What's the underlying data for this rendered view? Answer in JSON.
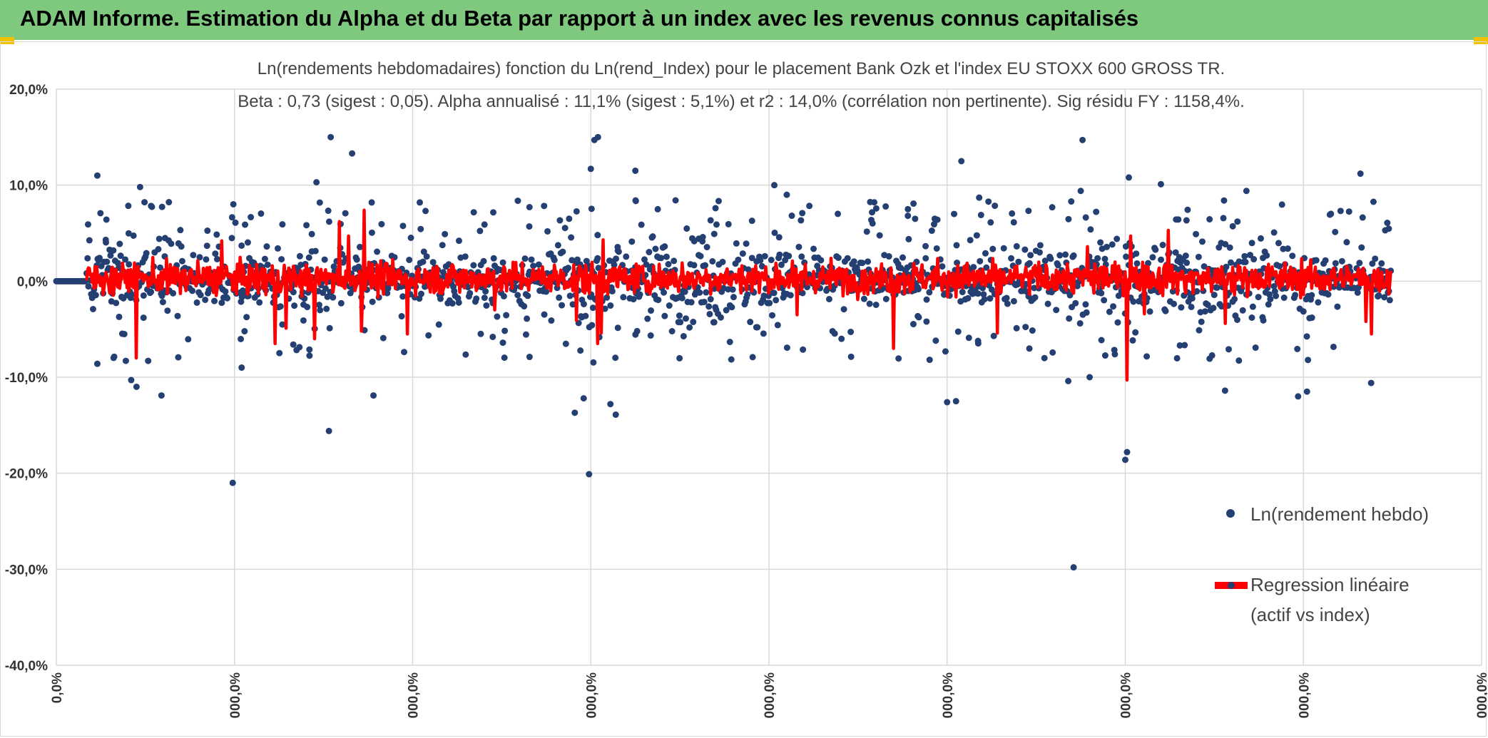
{
  "header": {
    "title": "ADAM Informe. Estimation du Alpha et du Beta par rapport à un index avec les revenus connus capitalisés",
    "accent_color": "#7fc97f",
    "corner_color": "#f2c200"
  },
  "chart_data": {
    "type": "scatter",
    "title": "Ln(rendements hebdomadaires) fonction du Ln(rend_Index) pour le placement Bank Ozk et l'index EU STOXX 600 GROSS TR.",
    "subtitle": "Beta : 0,73 (sigest : 0,05). Alpha annualisé : 11,1% (sigest : 5,1%) et r2 : 14,0% (corrélation non pertinente). Sig résidu FY : 1158,4%.",
    "ylim": [
      -40,
      20
    ],
    "yticks": [
      20,
      10,
      0,
      -10,
      -20,
      -30,
      -40
    ],
    "ytick_labels": [
      "20,0%",
      "10,0%",
      "0,0%",
      "-10,0%",
      "-20,0%",
      "-30,0%",
      "-40,0%"
    ],
    "xlim": [
      0,
      8
    ],
    "xtick_labels": [
      "0,0%",
      "000,0%",
      "000,0%",
      "000,0%",
      "000,0%",
      "000,0%",
      "000,0%",
      "000,0%",
      "000,0%"
    ],
    "grid": true,
    "legend_position": "right",
    "series": [
      {
        "name": "Ln(rendement hebdo)",
        "kind": "scatter",
        "color": "#243f72",
        "outliers": [
          [
            0.23,
            11.0
          ],
          [
            0.47,
            9.8
          ],
          [
            0.42,
            -10.3
          ],
          [
            0.45,
            -11.0
          ],
          [
            0.59,
            -11.9
          ],
          [
            0.99,
            -21.0
          ],
          [
            1.04,
            -9.0
          ],
          [
            1.46,
            10.3
          ],
          [
            1.54,
            15.0
          ],
          [
            1.53,
            -15.6
          ],
          [
            1.66,
            13.3
          ],
          [
            1.77,
            8.2
          ],
          [
            1.78,
            -11.9
          ],
          [
            2.04,
            8.2
          ],
          [
            2.91,
            -13.7
          ],
          [
            3.0,
            11.7
          ],
          [
            3.02,
            14.7
          ],
          [
            3.04,
            15.0
          ],
          [
            2.99,
            -20.1
          ],
          [
            3.11,
            -12.8
          ],
          [
            3.14,
            -13.9
          ],
          [
            3.25,
            11.5
          ],
          [
            2.96,
            -12.2
          ],
          [
            4.03,
            10.0
          ],
          [
            5.0,
            -12.6
          ],
          [
            5.05,
            -12.5
          ],
          [
            5.08,
            12.5
          ],
          [
            5.18,
            8.7
          ],
          [
            5.71,
            -29.8
          ],
          [
            5.76,
            14.7
          ],
          [
            5.75,
            9.4
          ],
          [
            6.0,
            -18.6
          ],
          [
            6.01,
            -17.8
          ],
          [
            6.02,
            10.8
          ],
          [
            6.2,
            10.1
          ],
          [
            6.56,
            -11.4
          ],
          [
            6.68,
            9.4
          ],
          [
            6.97,
            -12.0
          ],
          [
            7.02,
            -11.5
          ],
          [
            7.32,
            11.2
          ],
          [
            7.38,
            -10.6
          ],
          [
            5.8,
            -10.0
          ],
          [
            5.68,
            -10.4
          ],
          [
            0.23,
            -8.6
          ],
          [
            0.39,
            -8.3
          ],
          [
            1.33,
            -6.6
          ],
          [
            4.78,
            7.5
          ],
          [
            4.1,
            9.0
          ]
        ]
      },
      {
        "name": "Regression linéaire\n(actif vs index)",
        "kind": "line",
        "color": "#ff0000",
        "spikes": [
          [
            0.45,
            -8.0
          ],
          [
            0.93,
            4.2
          ],
          [
            1.23,
            -6.5
          ],
          [
            1.29,
            -4.9
          ],
          [
            1.45,
            -6.0
          ],
          [
            1.59,
            6.2
          ],
          [
            1.64,
            4.7
          ],
          [
            1.71,
            -5.2
          ],
          [
            1.73,
            7.4
          ],
          [
            1.97,
            -5.5
          ],
          [
            2.46,
            -3.0
          ],
          [
            2.92,
            -4.1
          ],
          [
            3.04,
            -6.5
          ],
          [
            3.06,
            -5.4
          ],
          [
            3.07,
            4.3
          ],
          [
            4.16,
            -3.5
          ],
          [
            4.7,
            -7.0
          ],
          [
            5.28,
            -5.4
          ],
          [
            5.79,
            3.6
          ],
          [
            6.01,
            -10.3
          ],
          [
            6.03,
            4.7
          ],
          [
            6.11,
            -3.4
          ],
          [
            6.24,
            5.3
          ],
          [
            6.56,
            -4.4
          ],
          [
            7.35,
            -4.2
          ],
          [
            7.38,
            -5.5
          ]
        ]
      }
    ],
    "legend_labels": {
      "scatter": "Ln(rendement hebdo)",
      "line_1": "Regression linéaire",
      "line_2": "(actif vs index)"
    }
  }
}
